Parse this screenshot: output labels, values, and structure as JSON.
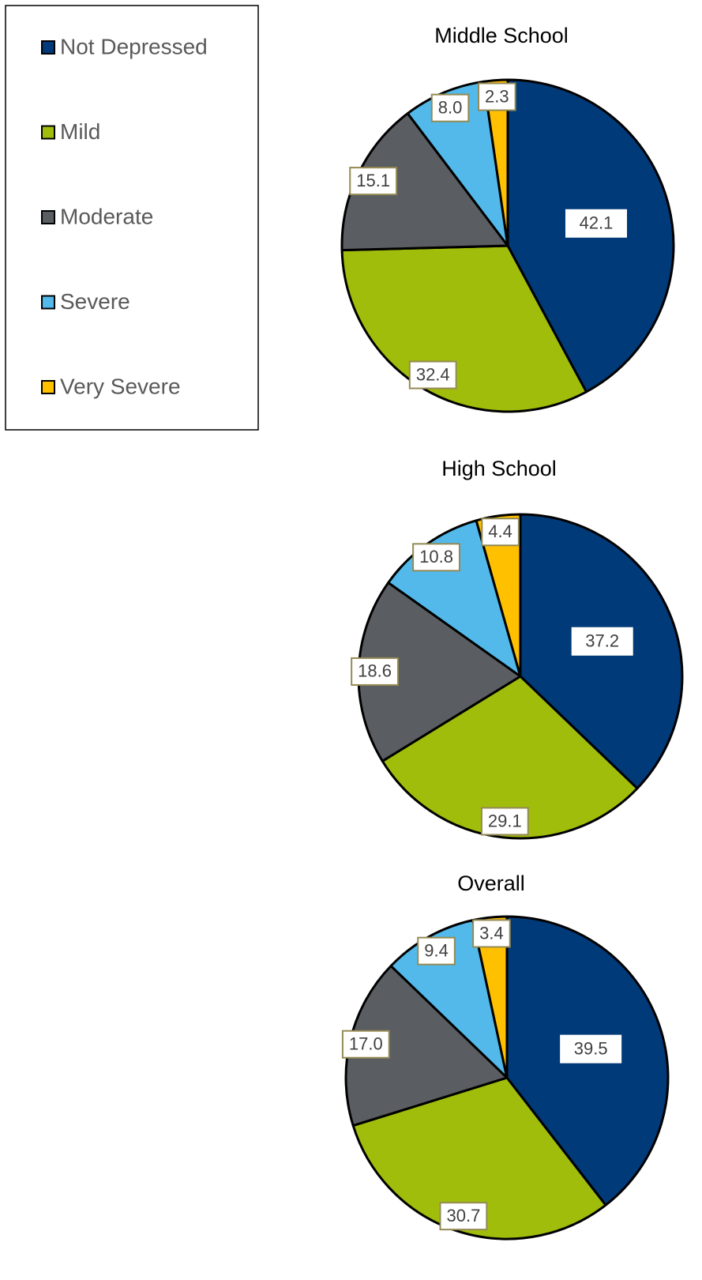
{
  "chart_data": [
    {
      "type": "pie",
      "title": "Middle School",
      "categories": [
        "Not Depressed",
        "Mild",
        "Moderate",
        "Severe",
        "Very Severe"
      ],
      "values": [
        42.1,
        32.4,
        15.1,
        8.0,
        2.3
      ],
      "value_labels": [
        "42.1",
        "32.4",
        "15.1",
        "8.0",
        "2.3"
      ],
      "colors": [
        "#003a78",
        "#a0bd0b",
        "#5a5d61",
        "#52b9ea",
        "#ffc000"
      ]
    },
    {
      "type": "pie",
      "title": "High School",
      "categories": [
        "Not Depressed",
        "Mild",
        "Moderate",
        "Severe",
        "Very Severe"
      ],
      "values": [
        37.2,
        29.1,
        18.6,
        10.8,
        4.4
      ],
      "value_labels": [
        "37.2",
        "29.1",
        "18.6",
        "10.8",
        "4.4"
      ],
      "colors": [
        "#003a78",
        "#a0bd0b",
        "#5a5d61",
        "#52b9ea",
        "#ffc000"
      ]
    },
    {
      "type": "pie",
      "title": "Overall",
      "categories": [
        "Not Depressed",
        "Mild",
        "Moderate",
        "Severe",
        "Very Severe"
      ],
      "values": [
        39.5,
        30.7,
        17.0,
        9.4,
        3.4
      ],
      "value_labels": [
        "39.5",
        "30.7",
        "17.0",
        "9.4",
        "3.4"
      ],
      "colors": [
        "#003a78",
        "#a0bd0b",
        "#5a5d61",
        "#52b9ea",
        "#ffc000"
      ]
    }
  ]
}
